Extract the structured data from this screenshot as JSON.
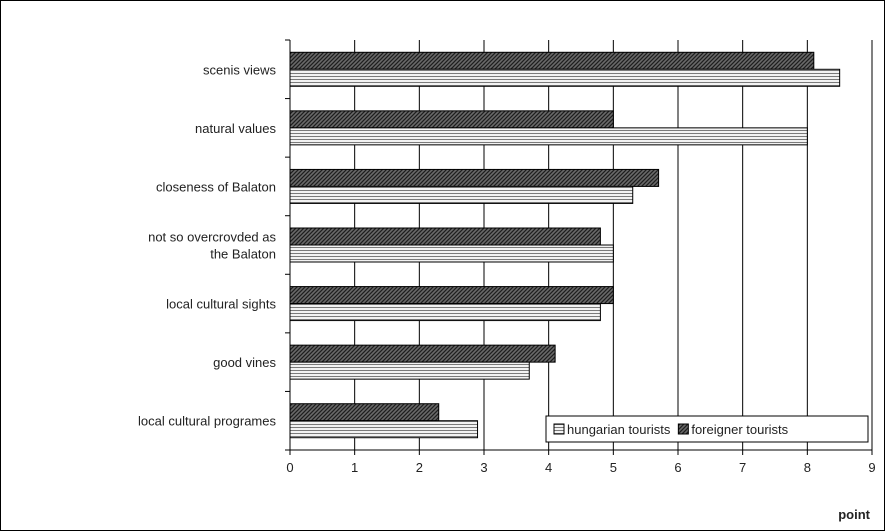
{
  "chart_data": {
    "type": "bar",
    "orientation": "horizontal",
    "categories": [
      [
        "scenis views"
      ],
      [
        "natural values"
      ],
      [
        "closeness of Balaton"
      ],
      [
        "not so overcrovded as",
        "the Balaton"
      ],
      [
        "local cultural sights"
      ],
      [
        "good vines"
      ],
      [
        "local cultural programes"
      ]
    ],
    "series": [
      {
        "name": "foreigner tourists",
        "values": [
          8.1,
          5.0,
          5.7,
          4.8,
          5.0,
          4.1,
          2.3
        ],
        "fill": "#5a5a5a",
        "pattern": "diagonal"
      },
      {
        "name": "hungarian tourists",
        "values": [
          8.5,
          8.0,
          5.3,
          5.0,
          4.8,
          3.7,
          2.9
        ],
        "fill": "#e6e6e6",
        "pattern": "horizontal"
      }
    ],
    "legend_order": [
      "hungarian tourists",
      "foreigner tourists"
    ],
    "xlim": [
      0,
      9
    ],
    "xticks": [
      0,
      1,
      2,
      3,
      4,
      5,
      6,
      7,
      8,
      9
    ],
    "xlabel": "point",
    "grid": true,
    "legend_position": "bottom-right"
  }
}
